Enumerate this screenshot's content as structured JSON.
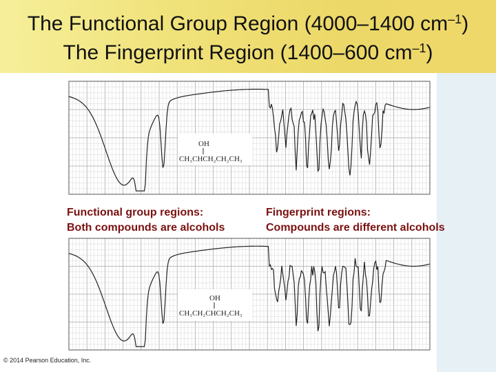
{
  "title": {
    "line1": "The Functional Group Region (4000–1400 cm",
    "line1_sup": "–1",
    "line1_end": ")",
    "line2": "The Fingerprint Region (1400–600 cm",
    "line2_sup": "–1",
    "line2_end": ")"
  },
  "captions": {
    "functional_1": "Functional group regions:",
    "functional_2": "Both compounds are alcohols",
    "fingerprint_1": "Fingerprint regions:",
    "fingerprint_2": "Compounds are different alcohols"
  },
  "spectra": [
    {
      "structure_oh": "OH",
      "structure_formula": "CH₃CHCH₂CH₂CH₃"
    },
    {
      "structure_oh": "OH",
      "structure_formula": "CH₃CH₂CHCH₂CH₃"
    }
  ],
  "footer": "© 2014 Pearson Education, Inc.",
  "colors": {
    "caption": "#7a1010",
    "title_band": "#f0e27a"
  }
}
